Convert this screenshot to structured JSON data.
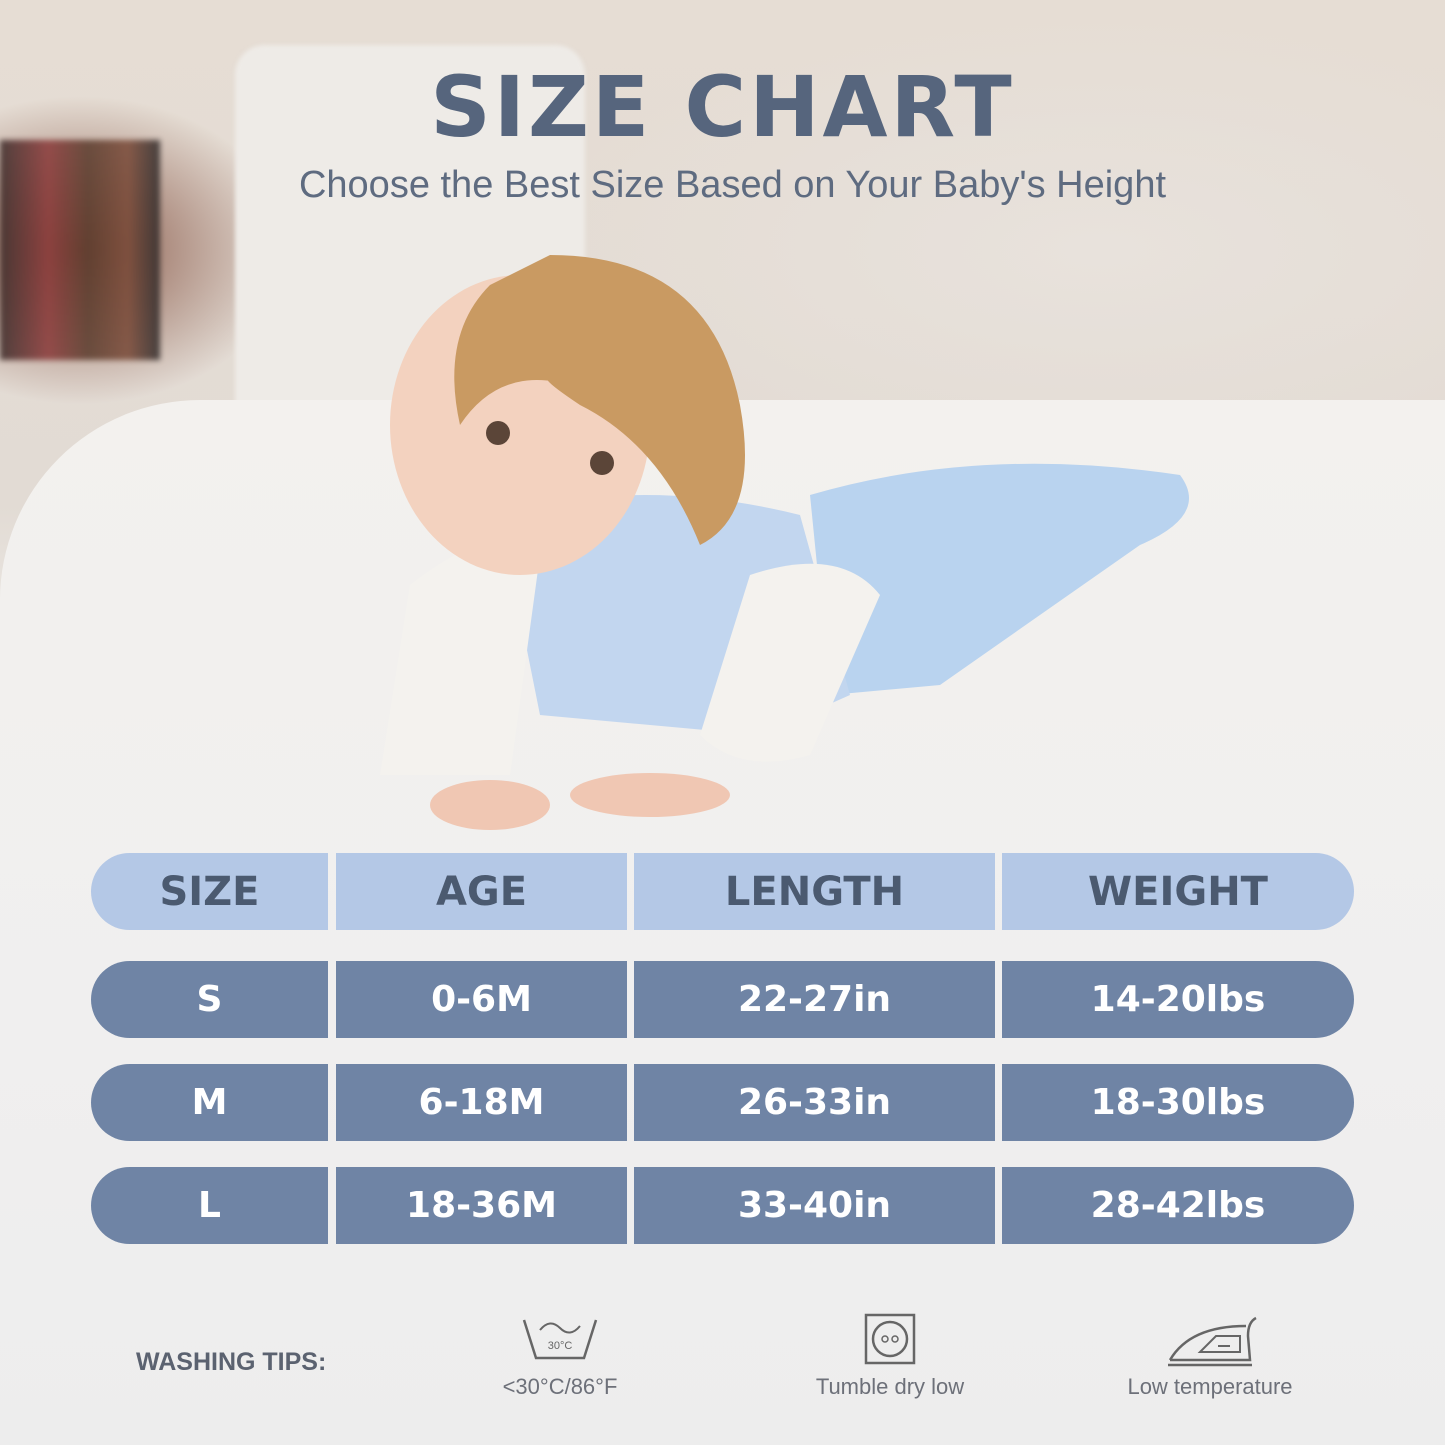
{
  "header": {
    "title": "SIZE CHART",
    "subtitle": "Choose the Best Size Based on Your Baby's Height"
  },
  "table": {
    "columns": [
      "SIZE",
      "AGE",
      "LENGTH",
      "WEIGHT"
    ],
    "rows": [
      [
        "S",
        "0-6M",
        "22-27in",
        "14-20lbs"
      ],
      [
        "M",
        "6-18M",
        "26-33in",
        "18-30lbs"
      ],
      [
        "L",
        "18-36M",
        "33-40in",
        "28-42lbs"
      ]
    ]
  },
  "washing": {
    "label": "WASHING TIPS:",
    "tips": [
      {
        "icon": "wash-30-icon",
        "icon_text": "30°C",
        "label": "<30°C/86°F"
      },
      {
        "icon": "tumble-dry-low-icon",
        "label": "Tumble dry low"
      },
      {
        "icon": "iron-low-icon",
        "label": "Low temperature"
      }
    ]
  },
  "colors": {
    "header_row": "#b4c8e6",
    "data_row": "#6f84a5",
    "title": "#56657d"
  }
}
